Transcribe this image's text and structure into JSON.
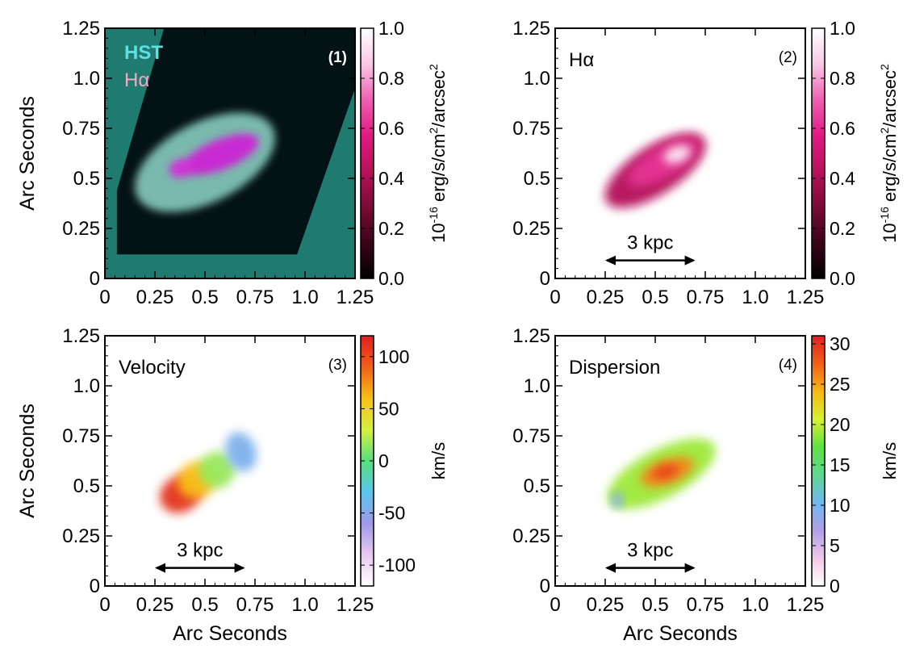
{
  "chart_data": [
    {
      "type": "heatmap",
      "panel": "(1)",
      "title_lines": [
        "HST",
        "Hα"
      ],
      "title_colors": [
        "#5ee0e0",
        "#f2a8c8"
      ],
      "xlabel": "",
      "ylabel": "Arc Seconds",
      "xlim": [
        0,
        1.25
      ],
      "ylim": [
        0,
        1.25
      ],
      "xticks": [
        "0",
        "0.25",
        "0.5",
        "0.75",
        "1.0",
        "1.25"
      ],
      "yticks": [
        "0",
        "0.25",
        "0.5",
        "0.75",
        "1.0",
        "1.25"
      ],
      "background_color": "#1f7a70",
      "footprint_color": "#031214",
      "footprint_polygon": [
        [
          0.06,
          0.44
        ],
        [
          0.31,
          1.3
        ],
        [
          1.25,
          1.3
        ],
        [
          1.25,
          0.95
        ],
        [
          0.96,
          0.12
        ],
        [
          0.06,
          0.12
        ]
      ],
      "colorbar": {
        "ticks": [
          "0.0",
          "0.2",
          "0.4",
          "0.6",
          "0.8",
          "1.0"
        ],
        "min": 0,
        "max": 1,
        "label_prefix": "10",
        "label_exponent": "-16",
        "label_main": " erg/s/cm",
        "label_exp2": "2",
        "label_mid": "/arcsec",
        "label_exp3": "2",
        "colors": [
          "#000000",
          "#3a0418",
          "#7a0a36",
          "#b8115a",
          "#e01a82",
          "#f060b0",
          "#f9c8e6",
          "#ffffff"
        ]
      },
      "features": [
        {
          "kind": "hst_halo",
          "cx": 0.5,
          "cy": 0.58,
          "rx": 0.38,
          "ry": 0.2,
          "angle_deg": 27,
          "color": "#8ed6c8",
          "level": 0.55
        },
        {
          "kind": "halpha_core",
          "cx": 0.58,
          "cy": 0.62,
          "rx": 0.2,
          "ry": 0.075,
          "angle_deg": 22,
          "color": "#cc24d4",
          "level": 0.9
        },
        {
          "kind": "halpha_knot",
          "cx": 0.38,
          "cy": 0.55,
          "rx": 0.06,
          "ry": 0.045,
          "angle_deg": 15,
          "color": "#d42ad8",
          "level": 0.9
        }
      ]
    },
    {
      "type": "heatmap",
      "panel": "(2)",
      "title": "Hα",
      "xlabel": "",
      "ylabel": "",
      "xlim": [
        0,
        1.25
      ],
      "ylim": [
        0,
        1.25
      ],
      "xticks": [
        "0",
        "0.25",
        "0.5",
        "0.75",
        "1.0",
        "1.25"
      ],
      "yticks": [
        "0",
        "0.25",
        "0.5",
        "0.75",
        "1.0",
        "1.25"
      ],
      "scalebar": {
        "label": "3 kpc",
        "x_from": 0.25,
        "x_to": 0.7,
        "y": 0.09
      },
      "colorbar": {
        "ticks": [
          "0.0",
          "0.2",
          "0.4",
          "0.6",
          "0.8",
          "1.0"
        ],
        "min": 0,
        "max": 1,
        "label_prefix": "10",
        "label_exponent": "-16",
        "label_main": " erg/s/cm",
        "label_exp2": "2",
        "label_mid": "/arcsec",
        "label_exp3": "2",
        "colors": [
          "#000000",
          "#3a0418",
          "#7a0a36",
          "#b8115a",
          "#e01a82",
          "#f060b0",
          "#f9c8e6",
          "#ffffff"
        ]
      },
      "features": [
        {
          "kind": "emission",
          "cx": 0.5,
          "cy": 0.54,
          "rx": 0.29,
          "ry": 0.12,
          "angle_deg": 33,
          "level": 0.42
        },
        {
          "kind": "emission",
          "cx": 0.54,
          "cy": 0.58,
          "rx": 0.2,
          "ry": 0.075,
          "angle_deg": 30,
          "level": 0.62
        },
        {
          "kind": "emission",
          "cx": 0.61,
          "cy": 0.62,
          "rx": 0.07,
          "ry": 0.04,
          "angle_deg": 20,
          "level": 0.96
        }
      ]
    },
    {
      "type": "heatmap",
      "panel": "(3)",
      "title": "Velocity",
      "xlabel": "Arc Seconds",
      "ylabel": "Arc Seconds",
      "xlim": [
        0,
        1.25
      ],
      "ylim": [
        0,
        1.25
      ],
      "xticks": [
        "0",
        "0.25",
        "0.5",
        "0.75",
        "1.0",
        "1.25"
      ],
      "yticks": [
        "0",
        "0.25",
        "0.5",
        "0.75",
        "1.0",
        "1.25"
      ],
      "scalebar": {
        "label": "3 kpc",
        "x_from": 0.25,
        "x_to": 0.7,
        "y": 0.09
      },
      "colorbar": {
        "ticks": [
          "-100",
          "-50",
          "0",
          "50",
          "100"
        ],
        "min": -120,
        "max": 120,
        "label": "km/s",
        "colors": [
          "#ffffff",
          "#e8c8f0",
          "#9f9ae8",
          "#59c7f0",
          "#58e07a",
          "#d6f040",
          "#f8c018",
          "#f06018",
          "#e02020"
        ]
      },
      "features": [
        {
          "kind": "velocity",
          "cx": 0.38,
          "cy": 0.46,
          "rx": 0.11,
          "ry": 0.09,
          "angle_deg": 30,
          "value": 112
        },
        {
          "kind": "velocity",
          "cx": 0.46,
          "cy": 0.53,
          "rx": 0.1,
          "ry": 0.09,
          "angle_deg": 30,
          "value": 60
        },
        {
          "kind": "velocity",
          "cx": 0.56,
          "cy": 0.58,
          "rx": 0.09,
          "ry": 0.09,
          "angle_deg": 30,
          "value": 15
        },
        {
          "kind": "velocity",
          "cx": 0.68,
          "cy": 0.67,
          "rx": 0.075,
          "ry": 0.1,
          "angle_deg": 20,
          "value": -45
        }
      ]
    },
    {
      "type": "heatmap",
      "panel": "(4)",
      "title": "Dispersion",
      "xlabel": "Arc Seconds",
      "ylabel": "",
      "xlim": [
        0,
        1.25
      ],
      "ylim": [
        0,
        1.25
      ],
      "xticks": [
        "0",
        "0.25",
        "0.5",
        "0.75",
        "1.0",
        "1.25"
      ],
      "yticks": [
        "0",
        "0.25",
        "0.5",
        "0.75",
        "1.0",
        "1.25"
      ],
      "scalebar": {
        "label": "3 kpc",
        "x_from": 0.25,
        "x_to": 0.7,
        "y": 0.09
      },
      "colorbar": {
        "ticks": [
          "0",
          "5",
          "10",
          "15",
          "20",
          "25",
          "30"
        ],
        "min": 0,
        "max": 31,
        "label": "km/s",
        "colors": [
          "#ffffff",
          "#f0c8e8",
          "#b0a0e8",
          "#70b8f0",
          "#60d890",
          "#60e040",
          "#d8f030",
          "#f8b818",
          "#f06018",
          "#e02020"
        ]
      },
      "features": [
        {
          "kind": "dispersion",
          "cx": 0.53,
          "cy": 0.56,
          "rx": 0.3,
          "ry": 0.12,
          "angle_deg": 28,
          "value": 19
        },
        {
          "kind": "dispersion",
          "cx": 0.56,
          "cy": 0.57,
          "rx": 0.14,
          "ry": 0.06,
          "angle_deg": 20,
          "value": 26
        },
        {
          "kind": "dispersion",
          "cx": 0.55,
          "cy": 0.57,
          "rx": 0.07,
          "ry": 0.035,
          "angle_deg": 15,
          "value": 29
        },
        {
          "kind": "dispersion",
          "cx": 0.31,
          "cy": 0.43,
          "rx": 0.03,
          "ry": 0.04,
          "angle_deg": 0,
          "value": 9
        }
      ]
    }
  ]
}
